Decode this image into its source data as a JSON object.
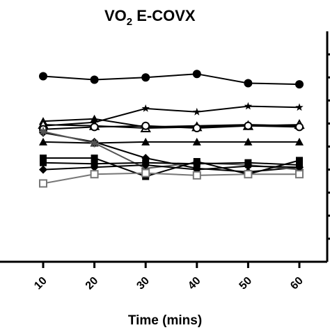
{
  "chart_data": {
    "type": "line",
    "title_main": "VO",
    "title_sub": "2",
    "title_rest": " E-COVX",
    "xlabel": "Time (mins)",
    "ylabel": "",
    "x": [
      10,
      20,
      30,
      40,
      50,
      60
    ],
    "x_tick_labels": [
      "10",
      "20",
      "30",
      "40",
      "50",
      "60"
    ],
    "xlim": [
      5,
      62
    ],
    "ylim": [
      0,
      10
    ],
    "y_ticks": [
      1,
      2,
      3,
      4,
      5,
      6,
      7,
      8,
      9
    ],
    "grid": false,
    "series": [
      {
        "marker": "circle",
        "color": "#000000",
        "values": [
          8.05,
          7.9,
          8.0,
          8.15,
          7.75,
          7.7
        ]
      },
      {
        "marker": "star",
        "color": "#000000",
        "values": [
          5.9,
          6.05,
          6.65,
          6.5,
          6.75,
          6.7
        ]
      },
      {
        "marker": "triangle",
        "color": "#000000",
        "values": [
          6.1,
          6.2,
          5.85,
          5.9,
          5.95,
          5.9
        ]
      },
      {
        "marker": "open-triangle",
        "color": "#000000",
        "values": [
          5.95,
          5.9,
          5.8,
          5.85,
          5.9,
          5.95
        ]
      },
      {
        "marker": "open-circle",
        "color": "#000000",
        "values": [
          5.75,
          5.85,
          5.9,
          5.8,
          5.9,
          5.85
        ]
      },
      {
        "marker": "diamond",
        "color": "#000000",
        "values": [
          5.6,
          5.2,
          4.5,
          4.05,
          3.9,
          4.1
        ]
      },
      {
        "marker": "triangle",
        "color": "#000000",
        "values": [
          5.2,
          5.15,
          5.2,
          5.2,
          5.2,
          5.2
        ]
      },
      {
        "marker": "asterisk",
        "color": "#555555",
        "values": [
          5.65,
          5.15,
          4.05,
          4.3,
          4.2,
          4.0
        ]
      },
      {
        "marker": "square",
        "color": "#000000",
        "values": [
          4.5,
          4.5,
          3.7,
          4.35,
          3.8,
          4.4
        ]
      },
      {
        "marker": "square",
        "color": "#000000",
        "values": [
          4.3,
          4.25,
          4.3,
          4.25,
          4.3,
          4.2
        ]
      },
      {
        "marker": "diamond",
        "color": "#000000",
        "values": [
          4.0,
          4.1,
          4.2,
          4.0,
          4.15,
          4.1
        ]
      },
      {
        "marker": "open-square",
        "color": "#777777",
        "values": [
          3.4,
          3.8,
          3.85,
          3.75,
          3.8,
          3.8
        ]
      }
    ]
  }
}
